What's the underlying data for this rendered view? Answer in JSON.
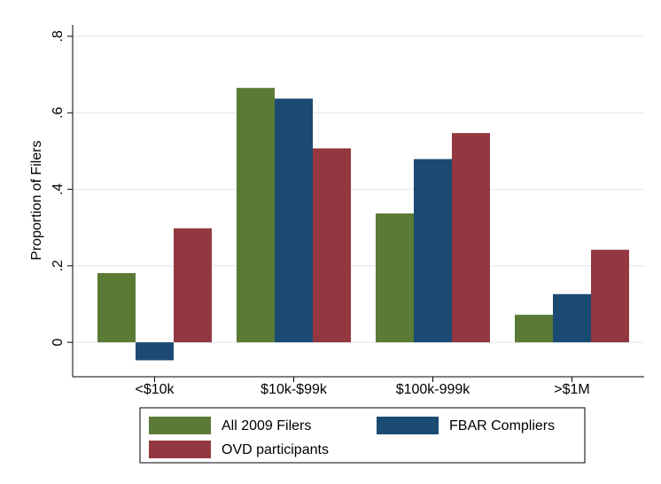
{
  "chart_data": {
    "type": "bar",
    "ylabel": "Proportion of Filers",
    "categories": [
      "<$10k",
      "$10k-$99k",
      "$100k-999k",
      ">$1M"
    ],
    "series": [
      {
        "name": "All 2009 Filers",
        "color": "#5a7a35",
        "values": [
          0.181,
          0.665,
          0.337,
          0.072
        ]
      },
      {
        "name": "FBAR Compliers",
        "color": "#1b4a73",
        "values": [
          -0.047,
          0.637,
          0.479,
          0.126
        ]
      },
      {
        "name": "OVD participants",
        "color": "#933740",
        "values": [
          0.298,
          0.507,
          0.547,
          0.242
        ]
      }
    ],
    "ylim": [
      -0.09,
      0.83
    ],
    "yticks": [
      0,
      {
        "value": 0.2,
        "label": ".2"
      },
      {
        "value": 0.4,
        "label": ".4"
      },
      {
        "value": 0.6,
        "label": ".6"
      },
      {
        "value": 0.8,
        "label": ".8"
      }
    ],
    "grid": true,
    "legend": "bottom"
  }
}
